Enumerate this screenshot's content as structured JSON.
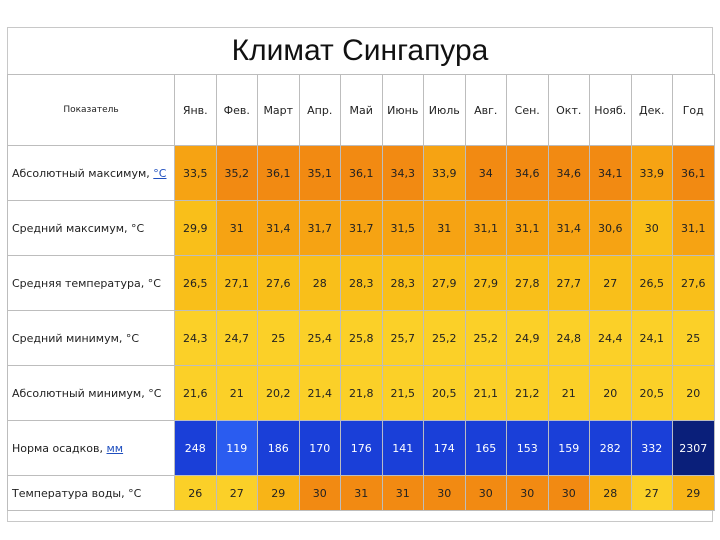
{
  "title": "Климат Сингапура",
  "header": {
    "corner": "Показатель",
    "months": [
      "Янв.",
      "Фев.",
      "Март",
      "Апр.",
      "Май",
      "Июнь",
      "Июль",
      "Авг.",
      "Сен.",
      "Окт.",
      "Нояб.",
      "Дек.",
      "Год"
    ]
  },
  "rows": [
    {
      "label_prefix": "Абсолютный максимум, ",
      "label_unit": "°C",
      "values": [
        "33,5",
        "35,2",
        "36,1",
        "35,1",
        "36,1",
        "34,3",
        "33,9",
        "34",
        "34,6",
        "34,6",
        "34,1",
        "33,9",
        "36,1"
      ]
    },
    {
      "label_prefix": "Средний максимум, °C",
      "label_unit": "",
      "values": [
        "29,9",
        "31",
        "31,4",
        "31,7",
        "31,7",
        "31,5",
        "31",
        "31,1",
        "31,1",
        "31,4",
        "30,6",
        "30",
        "31,1"
      ]
    },
    {
      "label_prefix": "Средняя температура, °C",
      "label_unit": "",
      "values": [
        "26,5",
        "27,1",
        "27,6",
        "28",
        "28,3",
        "28,3",
        "27,9",
        "27,9",
        "27,8",
        "27,7",
        "27",
        "26,5",
        "27,6"
      ]
    },
    {
      "label_prefix": "Средний минимум, °C",
      "label_unit": "",
      "values": [
        "24,3",
        "24,7",
        "25",
        "25,4",
        "25,8",
        "25,7",
        "25,2",
        "25,2",
        "24,9",
        "24,8",
        "24,4",
        "24,1",
        "25"
      ]
    },
    {
      "label_prefix": "Абсолютный минимум, °C",
      "label_unit": "",
      "values": [
        "21,6",
        "21",
        "20,2",
        "21,4",
        "21,8",
        "21,5",
        "20,5",
        "21,1",
        "21,2",
        "21",
        "20",
        "20,5",
        "20"
      ]
    },
    {
      "label_prefix": "Норма осадков, ",
      "label_unit": "мм",
      "values": [
        "248",
        "119",
        "186",
        "170",
        "176",
        "141",
        "174",
        "165",
        "153",
        "159",
        "282",
        "332",
        "2307"
      ]
    },
    {
      "label_prefix": "Температура воды, °C",
      "label_unit": "",
      "values": [
        "26",
        "27",
        "29",
        "30",
        "31",
        "31",
        "30",
        "30",
        "30",
        "30",
        "28",
        "27",
        "29"
      ]
    }
  ],
  "colors": {
    "temp_max": "#f28a12",
    "temp_mid": "#f6a313",
    "temp_warm": "#f9bf1a",
    "temp_light": "#fbd028",
    "rain_blue": "#1a3fd8",
    "rain_light": "#2a5cf0",
    "rain_dark": "#0a1f7a",
    "water_mid": "#f8b417"
  }
}
